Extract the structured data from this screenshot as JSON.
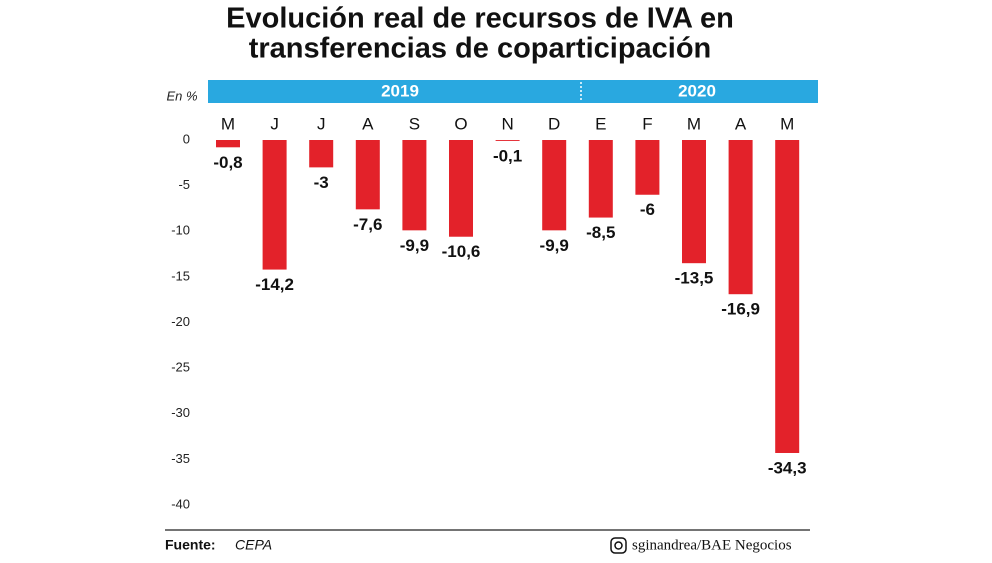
{
  "chart_data": {
    "type": "bar",
    "title": "Evolución real de recursos de IVA en",
    "subtitle": "transferencias de coparticipación",
    "y_label": "En %",
    "year_labels": [
      "2019",
      "2020"
    ],
    "categories": [
      "M",
      "J",
      "J",
      "A",
      "S",
      "O",
      "N",
      "D",
      "E",
      "F",
      "M",
      "A",
      "M"
    ],
    "values": [
      -0.8,
      -14.2,
      -3,
      -7.6,
      -9.9,
      -10.6,
      -0.1,
      -9.9,
      -8.5,
      -6,
      -13.5,
      -16.9,
      -34.3
    ],
    "value_labels": [
      "-0,8",
      "-14,2",
      "-3",
      "-7,6",
      "-9,9",
      "-10,6",
      "-0,1",
      "-9,9",
      "-8,5",
      "-6",
      "-13,5",
      "-16,9",
      "-34,3"
    ],
    "color": "#e3222a",
    "band_color": "#29a8e0",
    "ylim": [
      -40,
      0
    ],
    "yticks": [
      0,
      -5,
      -10,
      -15,
      -20,
      -25,
      -30,
      -35,
      -40
    ],
    "source_label": "Fuente:",
    "source": "CEPA",
    "credit": "sginandrea/BAE Negocios"
  }
}
